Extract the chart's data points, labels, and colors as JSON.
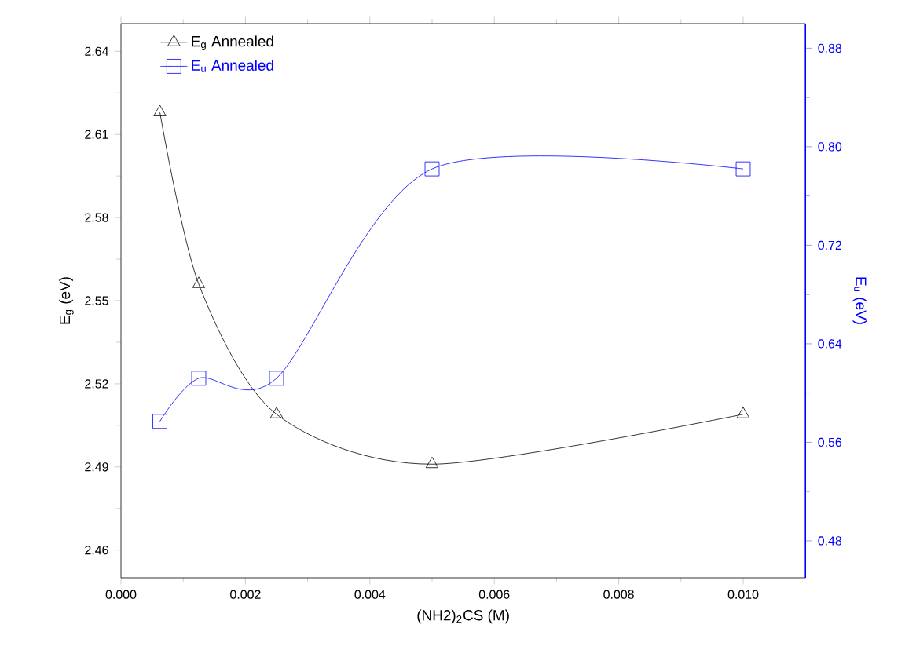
{
  "chart_data": {
    "type": "line",
    "xlabel": "(NH2)$_{2}$CS  (M)",
    "ylabel": "E$_{g}$ (eV)",
    "y2label": "E$_{u}$ (eV)",
    "x": [
      0.000625,
      0.00125,
      0.0025,
      0.005,
      0.01
    ],
    "series": [
      {
        "name": "E$_{g}$    Annealed",
        "color": "#000000",
        "marker": "triangle",
        "values": [
          2.618,
          2.556,
          2.509,
          2.491,
          2.509
        ]
      },
      {
        "name": "E$_{u}$    Annealed",
        "color": "#0000ff",
        "marker": "square",
        "axis": "y2",
        "values": [
          0.577,
          0.612,
          0.612,
          0.782,
          0.782
        ]
      }
    ],
    "xlim": [
      0,
      0.011
    ],
    "xticks": [
      {
        "value": 0,
        "label": "0.000"
      },
      {
        "value": 0.002,
        "label": "0.002"
      },
      {
        "value": 0.004,
        "label": "0.004"
      },
      {
        "value": 0.006,
        "label": "0.006"
      },
      {
        "value": 0.008,
        "label": "0.008"
      },
      {
        "value": 0.01,
        "label": "0.010"
      }
    ],
    "ylim": [
      2.45,
      2.65
    ],
    "yticks": [
      {
        "value": 2.46,
        "label": "2.46"
      },
      {
        "value": 2.49,
        "label": "2.49"
      },
      {
        "value": 2.52,
        "label": "2.52"
      },
      {
        "value": 2.55,
        "label": "2.55"
      },
      {
        "value": 2.58,
        "label": "2.58"
      },
      {
        "value": 2.61,
        "label": "2.61"
      },
      {
        "value": 2.64,
        "label": "2.64"
      }
    ],
    "y2lim": [
      0.45,
      0.9
    ],
    "y2ticks": [
      {
        "value": 0.48,
        "label": "0.48"
      },
      {
        "value": 0.56,
        "label": "0.56"
      },
      {
        "value": 0.64,
        "label": "0.64"
      },
      {
        "value": 0.72,
        "label": "0.72"
      },
      {
        "value": 0.8,
        "label": "0.80"
      },
      {
        "value": 0.88,
        "label": "0.88"
      }
    ],
    "grid": false,
    "legend": "top left",
    "line_style": "solid"
  }
}
